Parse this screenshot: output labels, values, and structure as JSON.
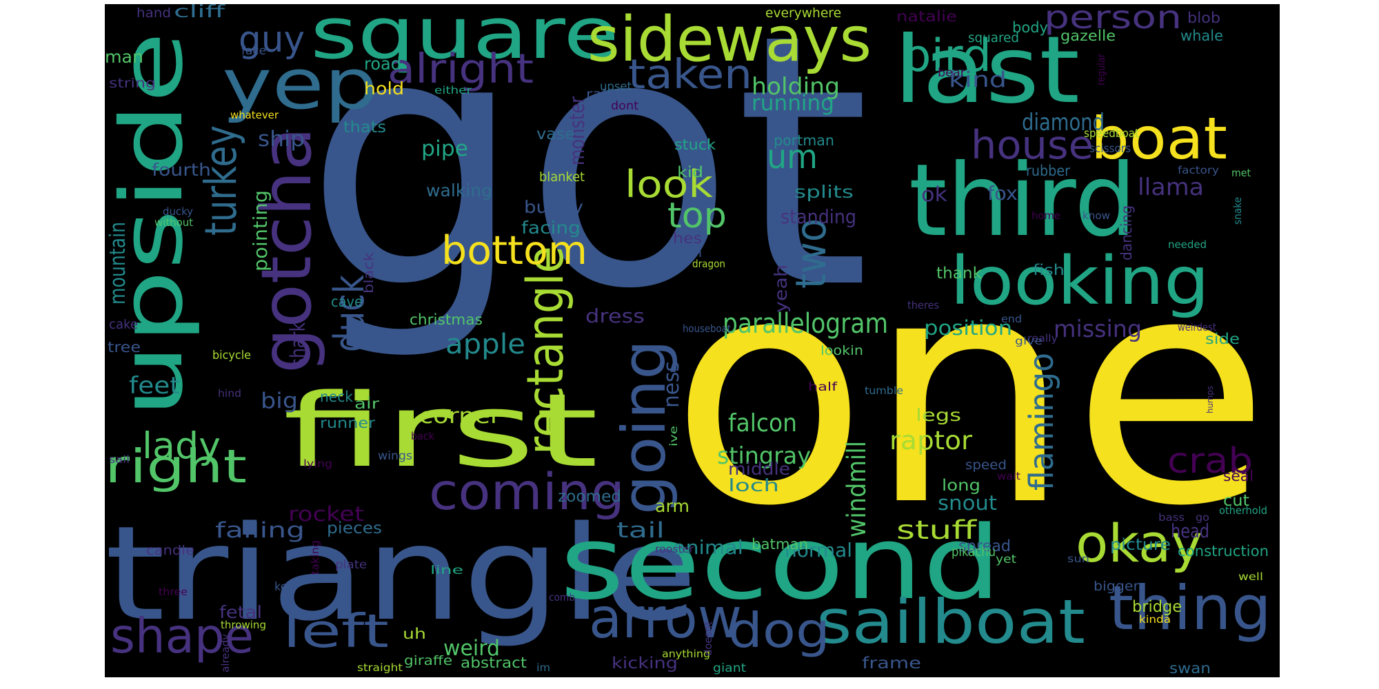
{
  "palette": {
    "yellow": "#f5e11e",
    "lime": "#a8db34",
    "green": "#52c569",
    "teal": "#21a685",
    "cyan": "#238a8d",
    "blue": "#2f6c8e",
    "slate": "#39568c",
    "indigo": "#46327e",
    "purple": "#440154"
  },
  "words": [
    {
      "text": "got",
      "color": "slate"
    },
    {
      "text": "one",
      "color": "yellow"
    },
    {
      "text": "triangle",
      "color": "slate"
    },
    {
      "text": "second",
      "color": "teal"
    },
    {
      "text": "first",
      "color": "lime"
    },
    {
      "text": "upside",
      "color": "teal"
    },
    {
      "text": "square",
      "color": "teal"
    },
    {
      "text": "last",
      "color": "teal"
    },
    {
      "text": "third",
      "color": "teal"
    },
    {
      "text": "sideways",
      "color": "lime"
    },
    {
      "text": "yep",
      "color": "blue"
    },
    {
      "text": "looking",
      "color": "teal"
    },
    {
      "text": "gotcha",
      "color": "indigo"
    },
    {
      "text": "boat",
      "color": "yellow"
    },
    {
      "text": "sailboat",
      "color": "cyan"
    },
    {
      "text": "thing",
      "color": "slate"
    },
    {
      "text": "arrow",
      "color": "slate"
    },
    {
      "text": "coming",
      "color": "indigo"
    },
    {
      "text": "going",
      "color": "slate"
    },
    {
      "text": "rectangle",
      "color": "lime"
    },
    {
      "text": "okay",
      "color": "lime"
    },
    {
      "text": "right",
      "color": "green"
    },
    {
      "text": "left",
      "color": "slate"
    },
    {
      "text": "shape",
      "color": "indigo"
    },
    {
      "text": "dog",
      "color": "slate"
    },
    {
      "text": "bottom",
      "color": "yellow"
    },
    {
      "text": "house",
      "color": "indigo"
    },
    {
      "text": "bird",
      "color": "teal"
    },
    {
      "text": "person",
      "color": "indigo"
    },
    {
      "text": "guy",
      "color": "slate"
    },
    {
      "text": "alright",
      "color": "indigo"
    },
    {
      "text": "taken",
      "color": "slate"
    },
    {
      "text": "turkey",
      "color": "blue"
    },
    {
      "text": "duck",
      "color": "slate"
    },
    {
      "text": "two",
      "color": "blue"
    },
    {
      "text": "look",
      "color": "lime"
    },
    {
      "text": "top",
      "color": "green"
    },
    {
      "text": "um",
      "color": "teal"
    },
    {
      "text": "crab",
      "color": "purple"
    },
    {
      "text": "flamingo",
      "color": "blue"
    },
    {
      "text": "lady",
      "color": "green"
    },
    {
      "text": "parallelogram",
      "color": "green"
    },
    {
      "text": "apple",
      "color": "cyan"
    },
    {
      "text": "stuff",
      "color": "lime"
    },
    {
      "text": "raptor",
      "color": "lime"
    },
    {
      "text": "windmill",
      "color": "green"
    },
    {
      "text": "falcon",
      "color": "green"
    },
    {
      "text": "stingray",
      "color": "green"
    },
    {
      "text": "diamond",
      "color": "blue"
    },
    {
      "text": "missing",
      "color": "indigo"
    },
    {
      "text": "position",
      "color": "teal"
    },
    {
      "text": "llama",
      "color": "indigo"
    },
    {
      "text": "holding",
      "color": "green"
    },
    {
      "text": "running",
      "color": "teal"
    },
    {
      "text": "kind",
      "color": "slate"
    },
    {
      "text": "corner",
      "color": "lime"
    },
    {
      "text": "tail",
      "color": "blue"
    },
    {
      "text": "falling",
      "color": "slate"
    },
    {
      "text": "feet",
      "color": "cyan"
    },
    {
      "text": "weird",
      "color": "green"
    },
    {
      "text": "rocket",
      "color": "purple"
    },
    {
      "text": "snout",
      "color": "cyan"
    },
    {
      "text": "head",
      "color": "indigo"
    },
    {
      "text": "pipe",
      "color": "teal"
    },
    {
      "text": "ship",
      "color": "slate"
    },
    {
      "text": "mountain",
      "color": "cyan"
    },
    {
      "text": "pointing",
      "color": "green"
    },
    {
      "text": "dress",
      "color": "indigo"
    },
    {
      "text": "big",
      "color": "slate"
    },
    {
      "text": "animal",
      "color": "cyan"
    },
    {
      "text": "normal",
      "color": "cyan"
    },
    {
      "text": "ok",
      "color": "indigo"
    },
    {
      "text": "fox",
      "color": "slate"
    },
    {
      "text": "standing",
      "color": "indigo"
    },
    {
      "text": "splits",
      "color": "cyan"
    },
    {
      "text": "bunny",
      "color": "slate"
    },
    {
      "text": "facing",
      "color": "cyan"
    },
    {
      "text": "walking",
      "color": "blue"
    },
    {
      "text": "monster",
      "color": "indigo"
    },
    {
      "text": "vase",
      "color": "blue"
    },
    {
      "text": "fourth",
      "color": "slate"
    },
    {
      "text": "man",
      "color": "green"
    },
    {
      "text": "cliff",
      "color": "blue"
    },
    {
      "text": "hold",
      "color": "yellow"
    },
    {
      "text": "road",
      "color": "teal"
    },
    {
      "text": "thats",
      "color": "cyan"
    },
    {
      "text": "fetal",
      "color": "indigo"
    },
    {
      "text": "arm",
      "color": "lime"
    },
    {
      "text": "middle",
      "color": "indigo"
    },
    {
      "text": "loch",
      "color": "cyan"
    },
    {
      "text": "ness",
      "color": "slate"
    },
    {
      "text": "shark",
      "color": "indigo"
    },
    {
      "text": "yeah",
      "color": "indigo"
    },
    {
      "text": "legs",
      "color": "lime"
    },
    {
      "text": "batman",
      "color": "green"
    },
    {
      "text": "picture",
      "color": "cyan"
    },
    {
      "text": "spread",
      "color": "slate"
    },
    {
      "text": "long",
      "color": "green"
    },
    {
      "text": "zoomed",
      "color": "blue"
    },
    {
      "text": "pieces",
      "color": "blue"
    },
    {
      "text": "bridge",
      "color": "lime"
    },
    {
      "text": "construction",
      "color": "teal"
    },
    {
      "text": "cut",
      "color": "green"
    },
    {
      "text": "seal",
      "color": "purple"
    },
    {
      "text": "side",
      "color": "teal"
    },
    {
      "text": "thank",
      "color": "green"
    },
    {
      "text": "fish",
      "color": "cyan"
    },
    {
      "text": "kicking",
      "color": "indigo"
    },
    {
      "text": "frame",
      "color": "slate"
    },
    {
      "text": "swan",
      "color": "blue"
    },
    {
      "text": "abstract",
      "color": "green"
    },
    {
      "text": "uh",
      "color": "lime"
    },
    {
      "text": "neck",
      "color": "cyan"
    },
    {
      "text": "air",
      "color": "green"
    },
    {
      "text": "runner",
      "color": "cyan"
    },
    {
      "text": "christmas",
      "color": "green"
    },
    {
      "text": "cave",
      "color": "cyan"
    },
    {
      "text": "black",
      "color": "indigo"
    },
    {
      "text": "hes",
      "color": "indigo"
    },
    {
      "text": "sign",
      "color": "slate"
    },
    {
      "text": "kid",
      "color": "green"
    },
    {
      "text": "stuck",
      "color": "teal"
    },
    {
      "text": "blanket",
      "color": "lime"
    },
    {
      "text": "rubber",
      "color": "blue"
    },
    {
      "text": "dancing",
      "color": "indigo"
    },
    {
      "text": "portman",
      "color": "cyan"
    },
    {
      "text": "natalie",
      "color": "purple"
    },
    {
      "text": "everywhere",
      "color": "lime"
    },
    {
      "text": "squared",
      "color": "teal"
    },
    {
      "text": "body",
      "color": "teal"
    },
    {
      "text": "blob",
      "color": "indigo"
    },
    {
      "text": "gazelle",
      "color": "green"
    },
    {
      "text": "whale",
      "color": "cyan"
    },
    {
      "text": "hand",
      "color": "indigo"
    },
    {
      "text": "face",
      "color": "slate"
    },
    {
      "text": "string",
      "color": "indigo"
    },
    {
      "text": "whatever",
      "color": "yellow"
    },
    {
      "text": "rat",
      "color": "slate"
    },
    {
      "text": "either",
      "color": "teal"
    },
    {
      "text": "upset",
      "color": "blue"
    },
    {
      "text": "dont",
      "color": "purple"
    },
    {
      "text": "regular",
      "color": "purple"
    },
    {
      "text": "bear",
      "color": "purple"
    },
    {
      "text": "speedboat",
      "color": "lime"
    },
    {
      "text": "scissors",
      "color": "slate"
    },
    {
      "text": "factory",
      "color": "slate"
    },
    {
      "text": "met",
      "color": "green"
    },
    {
      "text": "snake",
      "color": "cyan"
    },
    {
      "text": "ducky",
      "color": "slate"
    },
    {
      "text": "without",
      "color": "green"
    },
    {
      "text": "home",
      "color": "purple"
    },
    {
      "text": "know",
      "color": "slate"
    },
    {
      "text": "needed",
      "color": "teal"
    },
    {
      "text": "cake",
      "color": "indigo"
    },
    {
      "text": "tree",
      "color": "slate"
    },
    {
      "text": "bicycle",
      "color": "lime"
    },
    {
      "text": "hind",
      "color": "indigo"
    },
    {
      "text": "back",
      "color": "purple"
    },
    {
      "text": "wings",
      "color": "slate"
    },
    {
      "text": "sail",
      "color": "indigo"
    },
    {
      "text": "lying",
      "color": "purple"
    },
    {
      "text": "candle",
      "color": "indigo"
    },
    {
      "text": "taking",
      "color": "purple"
    },
    {
      "text": "plate",
      "color": "indigo"
    },
    {
      "text": "line",
      "color": "teal"
    },
    {
      "text": "three",
      "color": "purple"
    },
    {
      "text": "comb",
      "color": "indigo"
    },
    {
      "text": "key",
      "color": "slate"
    },
    {
      "text": "throwing",
      "color": "lime"
    },
    {
      "text": "already",
      "color": "indigo"
    },
    {
      "text": "straight",
      "color": "lime"
    },
    {
      "text": "giraffe",
      "color": "green"
    },
    {
      "text": "im",
      "color": "blue"
    },
    {
      "text": "anything",
      "color": "lime"
    },
    {
      "text": "giant",
      "color": "teal"
    },
    {
      "text": "doesnt",
      "color": "indigo"
    },
    {
      "text": "go",
      "color": "indigo"
    },
    {
      "text": "bass",
      "color": "indigo"
    },
    {
      "text": "rooster",
      "color": "indigo"
    },
    {
      "text": "pikachu",
      "color": "green"
    },
    {
      "text": "yet",
      "color": "green"
    },
    {
      "text": "sun",
      "color": "slate"
    },
    {
      "text": "well",
      "color": "lime"
    },
    {
      "text": "kinda",
      "color": "yellow"
    },
    {
      "text": "bigger",
      "color": "slate"
    },
    {
      "text": "half",
      "color": "purple"
    },
    {
      "text": "tumble",
      "color": "blue"
    },
    {
      "text": "humps",
      "color": "indigo"
    },
    {
      "text": "wait",
      "color": "purple"
    },
    {
      "text": "otherhold",
      "color": "teal"
    },
    {
      "text": "speed",
      "color": "slate"
    },
    {
      "text": "ive",
      "color": "green"
    },
    {
      "text": "lookin",
      "color": "green"
    },
    {
      "text": "really",
      "color": "indigo"
    },
    {
      "text": "weirdest",
      "color": "indigo"
    },
    {
      "text": "give",
      "color": "slate"
    },
    {
      "text": "end",
      "color": "slate"
    },
    {
      "text": "theres",
      "color": "indigo"
    },
    {
      "text": "houseboat",
      "color": "slate"
    },
    {
      "text": "dragon",
      "color": "lime"
    }
  ]
}
